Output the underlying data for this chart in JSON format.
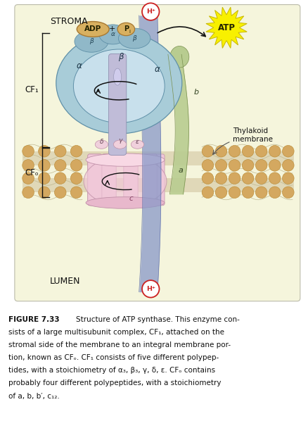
{
  "bg_cream": "#f5f5dc",
  "bg_white": "#ffffff",
  "stroma_label": "STROMA",
  "lumen_label": "LUMEN",
  "cf1_label": "CF₁",
  "cfo_label": "CFₒ",
  "thylakoid_label": "Thylakoid\nmembrane",
  "bead_color": "#d4a860",
  "bead_edge": "#b88830",
  "mem_fill": "#e8dfc0",
  "cf1_outer_color": "#a8ccd8",
  "cf1_inner_color": "#c8e0ec",
  "cf1_edge": "#6090a8",
  "inner_ellipse_color": "#d8e8f4",
  "stalk_color": "#c0bcd8",
  "stalk_edge": "#9090b0",
  "cfo_color": "#f0c8d8",
  "cfo_edge": "#c090a8",
  "cfo_seg_color": "#e0a8bc",
  "channel_color": "#8898c8",
  "channel_edge": "#6070a8",
  "b_subunit_color": "#b8cc90",
  "b_subunit_edge": "#7a9050",
  "adp_fill": "#d8b060",
  "adp_edge": "#a87830",
  "pi_fill": "#d8b060",
  "pi_edge": "#a87830",
  "atp_fill": "#f8f000",
  "atp_edge": "#c8b800",
  "hplus_edge": "#cc2020",
  "hplus_text": "#cc2020",
  "arrow_color": "#5060a0",
  "black": "#111111",
  "caption_fig": "FIGURE 7.33",
  "caption_body": "    Structure of ATP synthase. This enzyme con-\nsists of a large multisubunit complex, CF₁, attached on the\nstromal side of the membrane to an integral membrane por-\ntion, known as CFₒ. CF₁ consists of five different polypep-\ntides, with a stoichiometry of α₃, β₃, γ, δ, ε. CFₒ contains\nprobably four different polypeptides, with a stoichiometry\nof a, b, b′, c₁₂."
}
